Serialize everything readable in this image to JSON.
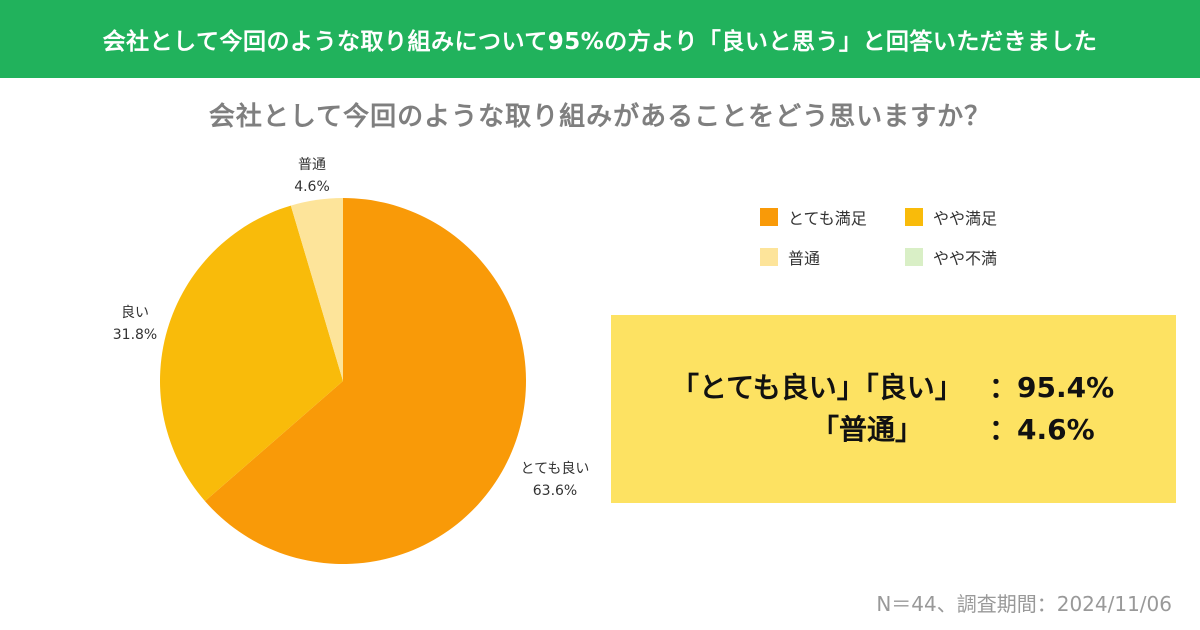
{
  "banner": {
    "text": "会社として今回のような取り組みについて95%の方より「良いと思う」と回答いただきました"
  },
  "chart_data": {
    "type": "pie",
    "title": "会社として今回のような取り組みがあることをどう思いますか？",
    "slices": [
      {
        "name": "とても良い",
        "value": 63.6,
        "label": "63.6%",
        "color": "#f99a08"
      },
      {
        "name": "良い",
        "value": 31.8,
        "label": "31.8%",
        "color": "#f9bb0a"
      },
      {
        "name": "普通",
        "value": 4.6,
        "label": "4.6%",
        "color": "#fde49a"
      }
    ],
    "legend": {
      "placement": "top-right",
      "entries": [
        {
          "label": "とても満足",
          "color": "#f99a08"
        },
        {
          "label": "やや満足",
          "color": "#f9bb0a"
        },
        {
          "label": "普通",
          "color": "#fde49a"
        },
        {
          "label": "やや不満",
          "color": "#d9efc6"
        }
      ]
    }
  },
  "callout": {
    "row1_text": "「とても良い」「良い」",
    "row1_value": "：95.4%",
    "row2_text": "「普通」",
    "row2_value": "：4.6%"
  },
  "footnote": "N＝44、調査期間：2024/11/06"
}
